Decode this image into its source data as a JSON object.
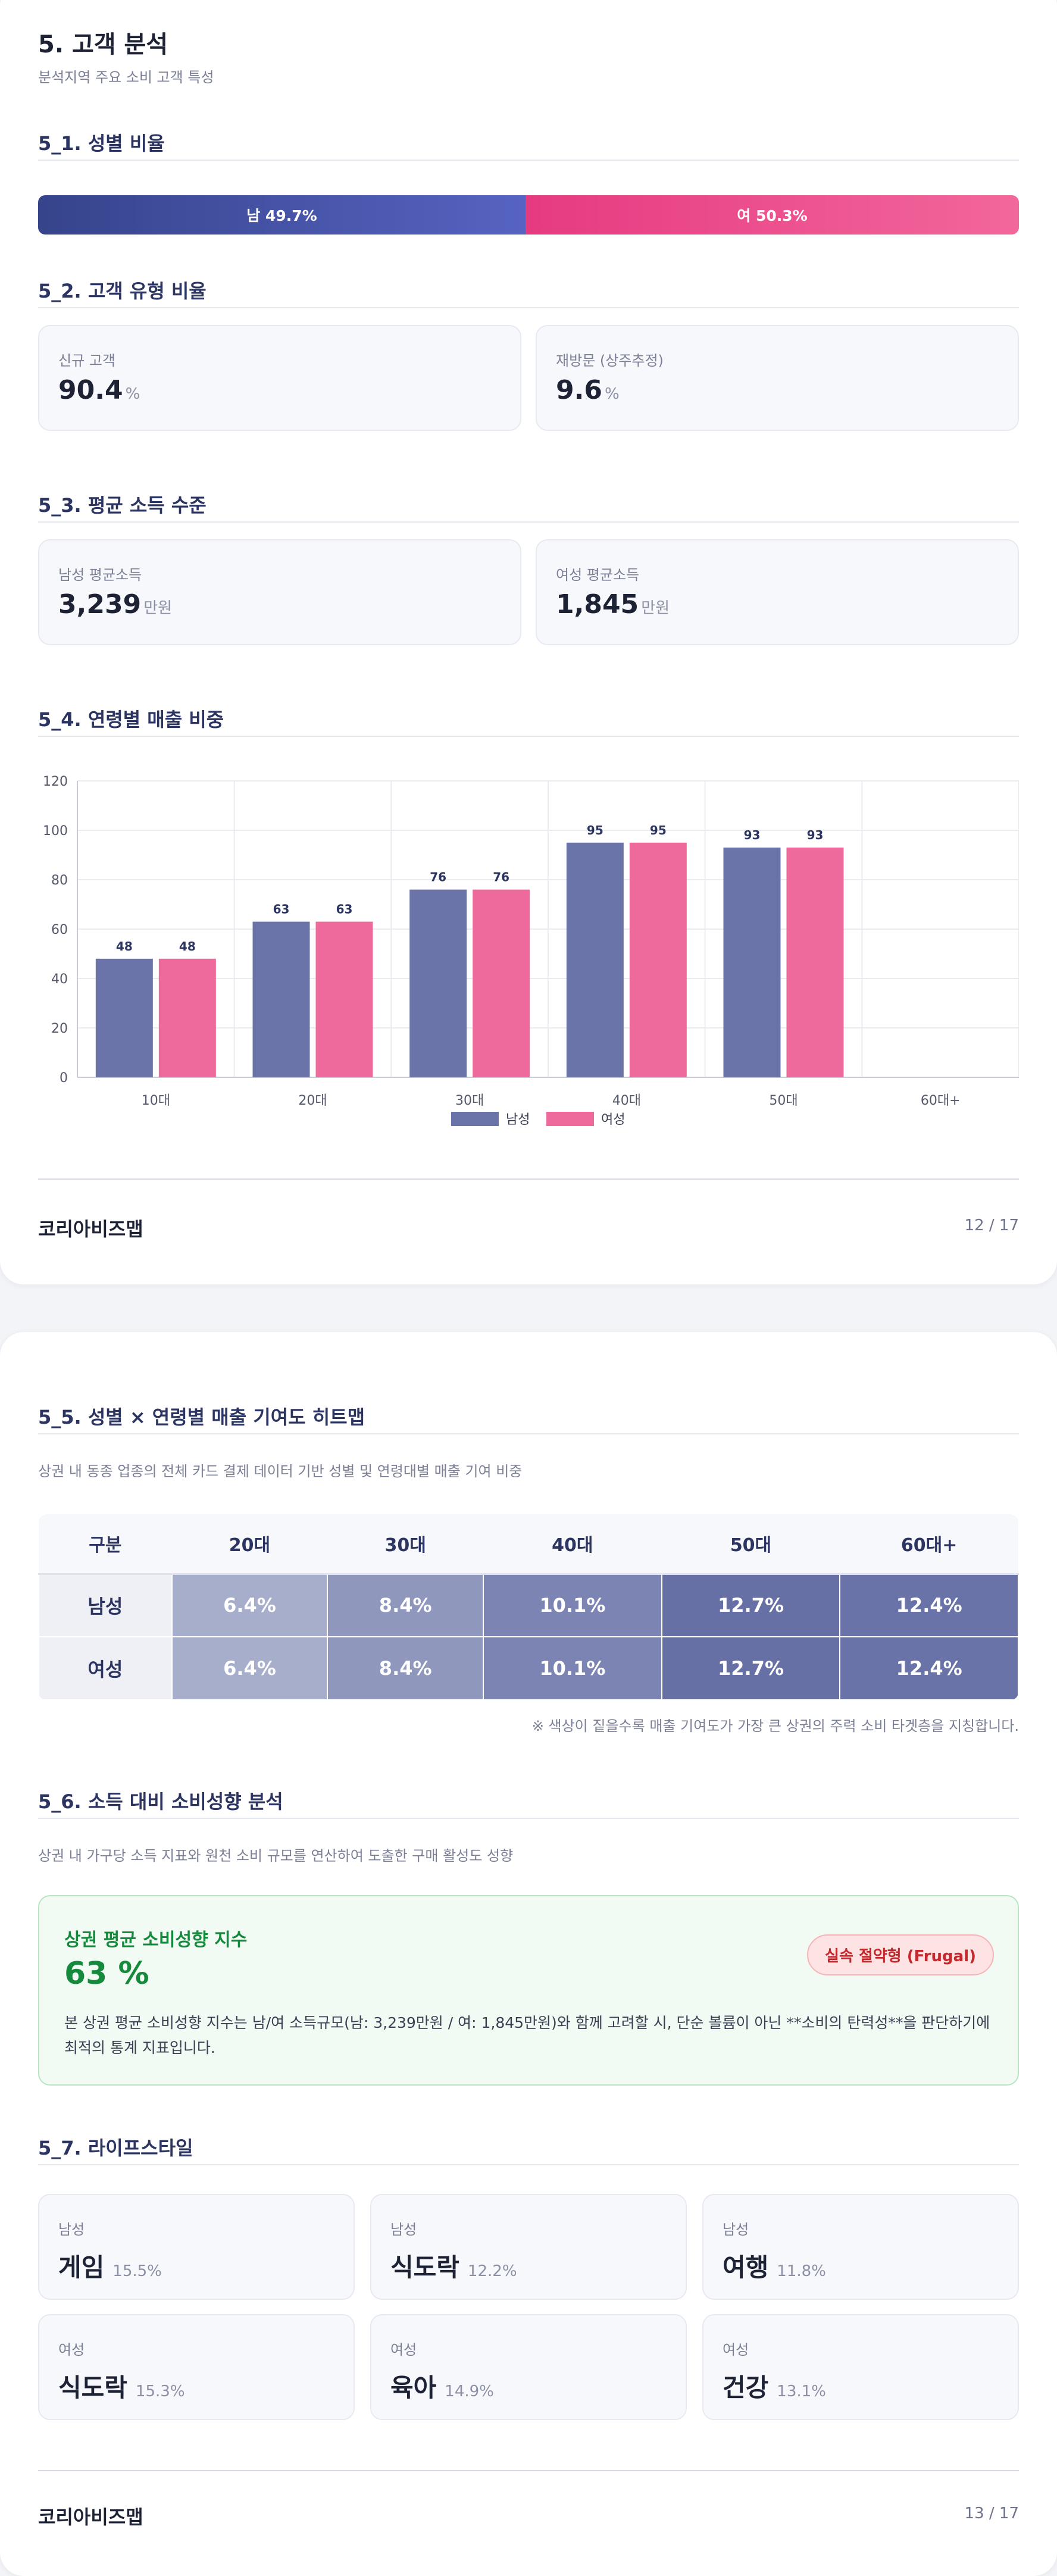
{
  "page1": {
    "title": "5. 고객 분석",
    "subtitle": "분석지역 주요 소비 고객 특성",
    "sec1": {
      "title": "5_1. 성별 비율",
      "male_label": "남 49.7%",
      "female_label": "여 50.3%",
      "male_share": 49.7,
      "female_share": 50.3,
      "male_color": "#4451a8",
      "female_color": "#ec4a8a"
    },
    "sec2": {
      "title": "5_2. 고객 유형 비율",
      "new_label": "신규 고객",
      "new_value": "90.4",
      "new_unit": "%",
      "revisit_label": "재방문 (상주추정)",
      "revisit_value": "9.6",
      "revisit_unit": "%"
    },
    "sec3": {
      "title": "5_3. 평균 소득 수준",
      "male_label": "남성 평균소득",
      "male_value": "3,239",
      "male_unit": "만원",
      "female_label": "여성 평균소득",
      "female_value": "1,845",
      "female_unit": "만원"
    },
    "sec4": {
      "title": "5_4. 연령별 매출 비중"
    },
    "chart_data": {
      "type": "bar",
      "categories": [
        "10대",
        "20대",
        "30대",
        "40대",
        "50대",
        "60대+"
      ],
      "series": [
        {
          "name": "남성",
          "values": [
            48,
            63,
            76,
            95,
            93,
            null
          ],
          "color": "#6b74a8"
        },
        {
          "name": "여성",
          "values": [
            48,
            63,
            76,
            95,
            93,
            null
          ],
          "color": "#ee6a9c"
        }
      ],
      "yticks": [
        "0",
        "20",
        "40",
        "60",
        "80",
        "100",
        "120"
      ],
      "ylim": [
        0,
        120
      ],
      "grid": true,
      "legend": "bottom-center"
    },
    "footer": {
      "brand": "코리아비즈맵",
      "page": "12 / 17"
    }
  },
  "page2": {
    "sec5": {
      "title": "5_5. 성별 × 연령별 매출 기여도 히트맵",
      "desc": "상권 내 동종 업종의 전체 카드 결제 데이터 기반 성별 및 연령대별 매출 기여 비중",
      "header": [
        "구분",
        "20대",
        "30대",
        "40대",
        "50대",
        "60대+"
      ],
      "rows": [
        {
          "label": "남성",
          "cells": [
            "6.4%",
            "8.4%",
            "10.1%",
            "12.7%",
            "12.4%"
          ]
        },
        {
          "label": "여성",
          "cells": [
            "6.4%",
            "8.4%",
            "10.1%",
            "12.7%",
            "12.4%"
          ]
        }
      ],
      "cell_colors": [
        "#a7aecb",
        "#8f97bd",
        "#7c84b3",
        "#6770a5",
        "#6a73a7"
      ],
      "note": "※ 색상이 짙을수록 매출 기여도가 가장 큰 상권의 주력 소비 타겟층을 지칭합니다."
    },
    "sec6": {
      "title": "5_6. 소득 대비 소비성향 분석",
      "desc": "상권 내 가구당 소득 지표와 원천 소비 규모를 연산하여 도출한 구매 활성도 성향",
      "card_title": "상권 평균 소비성향 지수",
      "value": "63 %",
      "badge": "실속 절약형 (Frugal)",
      "body": "본 상권 평균 소비성향 지수는 남/여 소득규모(남: 3,239만원 / 여: 1,845만원)와 함께 고려할 시, 단순 볼륨이 아닌 **소비의 탄력성**을 판단하기에 최적의 통계 지표입니다."
    },
    "sec7": {
      "title": "5_7. 라이프스타일",
      "items": [
        {
          "gender": "남성",
          "name": "게임",
          "pct": "15.5%"
        },
        {
          "gender": "남성",
          "name": "식도락",
          "pct": "12.2%"
        },
        {
          "gender": "남성",
          "name": "여행",
          "pct": "11.8%"
        },
        {
          "gender": "여성",
          "name": "식도락",
          "pct": "15.3%"
        },
        {
          "gender": "여성",
          "name": "육아",
          "pct": "14.9%"
        },
        {
          "gender": "여성",
          "name": "건강",
          "pct": "13.1%"
        }
      ]
    },
    "footer": {
      "brand": "코리아비즈맵",
      "page": "13 / 17"
    }
  }
}
